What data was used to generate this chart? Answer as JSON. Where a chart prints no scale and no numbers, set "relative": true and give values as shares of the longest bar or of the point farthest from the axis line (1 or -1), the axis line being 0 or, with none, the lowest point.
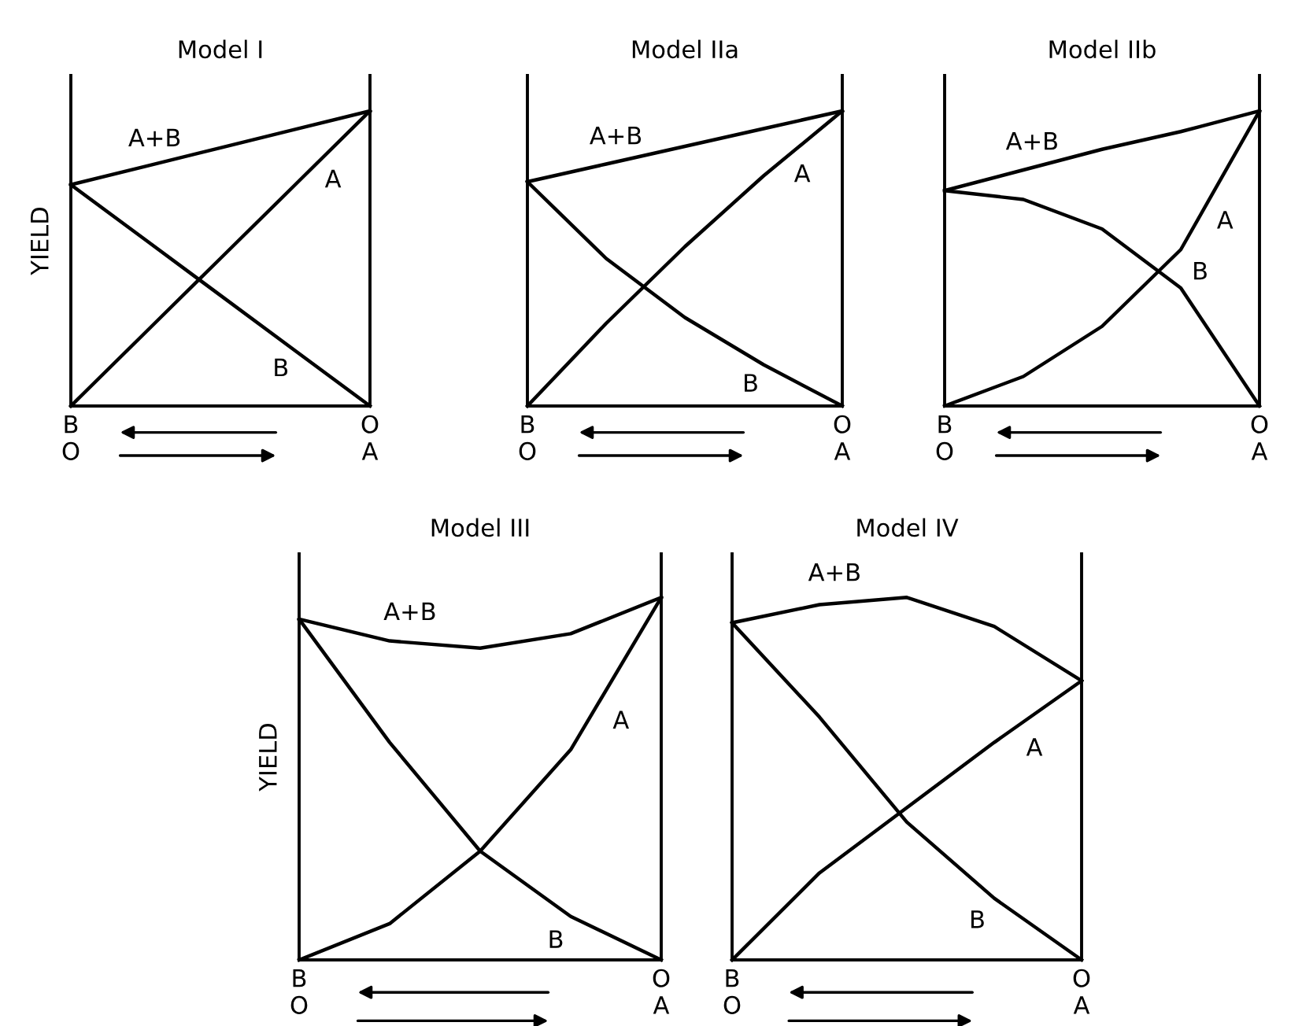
{
  "chart_data": [
    {
      "type": "line",
      "title": "Model I",
      "ylabel": "YIELD",
      "relative": true,
      "tick_labels": "x",
      "legend": false,
      "categories": [
        "B\nO",
        null,
        null,
        null,
        "O\nA"
      ],
      "series": [
        {
          "name": "A+B",
          "color": "#000000",
          "values": [
            0.75,
            0.8125,
            0.875,
            0.9375,
            1
          ]
        },
        {
          "name": "A",
          "color": "#000000",
          "values": [
            0,
            0.25,
            0.5,
            0.75,
            1
          ]
        },
        {
          "name": "B",
          "color": "#000000",
          "values": [
            0.75,
            0.5625,
            0.375,
            0.1875,
            0
          ]
        }
      ]
    },
    {
      "type": "line",
      "title": "Model IIa",
      "relative": true,
      "tick_labels": "x",
      "legend": false,
      "categories": [
        "B\nO",
        null,
        null,
        null,
        "O\nA"
      ],
      "series": [
        {
          "name": "A+B",
          "color": "#000000",
          "values": [
            0.76,
            0.82,
            0.88,
            0.94,
            1
          ]
        },
        {
          "name": "A",
          "color": "#000000",
          "values": [
            0,
            0.28,
            0.54,
            0.78,
            1
          ]
        },
        {
          "name": "B",
          "color": "#000000",
          "values": [
            0.76,
            0.5,
            0.3,
            0.14,
            0
          ]
        }
      ]
    },
    {
      "type": "line",
      "title": "Model IIb",
      "relative": true,
      "tick_labels": "x",
      "legend": false,
      "categories": [
        "B\nO",
        null,
        null,
        null,
        "O\nA"
      ],
      "series": [
        {
          "name": "A+B",
          "color": "#000000",
          "values": [
            0.73,
            0.8,
            0.87,
            0.93,
            1
          ]
        },
        {
          "name": "A",
          "color": "#000000",
          "values": [
            0,
            0.1,
            0.27,
            0.53,
            1
          ]
        },
        {
          "name": "B",
          "color": "#000000",
          "values": [
            0.73,
            0.7,
            0.6,
            0.4,
            0
          ]
        }
      ]
    },
    {
      "type": "line",
      "title": "Model III",
      "ylabel": "YIELD",
      "relative": true,
      "tick_labels": "x",
      "legend": false,
      "categories": [
        "B\nO",
        null,
        null,
        null,
        "O\nA"
      ],
      "series": [
        {
          "name": "A+B",
          "color": "#000000",
          "values": [
            0.94,
            0.88,
            0.86,
            0.9,
            1
          ]
        },
        {
          "name": "A",
          "color": "#000000",
          "values": [
            0,
            0.1,
            0.3,
            0.58,
            1
          ]
        },
        {
          "name": "B",
          "color": "#000000",
          "values": [
            0.94,
            0.6,
            0.3,
            0.12,
            0
          ]
        }
      ]
    },
    {
      "type": "line",
      "title": "Model IV",
      "relative": true,
      "tick_labels": "x",
      "legend": false,
      "categories": [
        "B\nO",
        null,
        null,
        null,
        "O\nA"
      ],
      "series": [
        {
          "name": "A+B",
          "color": "#000000",
          "values": [
            0.93,
            0.98,
            1,
            0.92,
            0.77
          ]
        },
        {
          "name": "A",
          "color": "#000000",
          "values": [
            0,
            0.24,
            0.42,
            0.6,
            0.77
          ]
        },
        {
          "name": "B",
          "color": "#000000",
          "values": [
            0.93,
            0.67,
            0.38,
            0.17,
            0
          ]
        }
      ]
    }
  ]
}
